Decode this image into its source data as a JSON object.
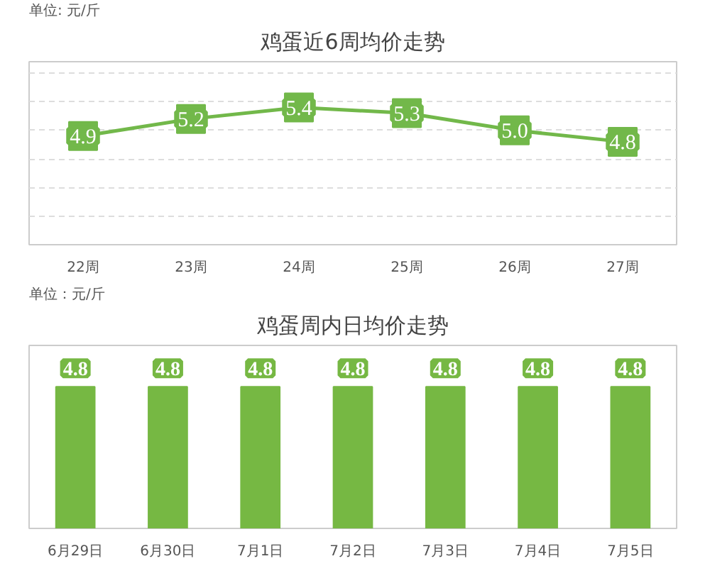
{
  "chart_data": [
    {
      "type": "line",
      "title": "鸡蛋近6周均价走势",
      "annotations": [
        "单位: 元/斤"
      ],
      "categories": [
        "22周",
        "23周",
        "24周",
        "25周",
        "26周",
        "27周"
      ],
      "series": [
        {
          "color": "#72b84a",
          "values": [
            4.9,
            5.2,
            5.4,
            5.3,
            5.0,
            4.8
          ],
          "value_labels": [
            "4.9",
            "5.2",
            "5.4",
            "5.3",
            "5.0",
            "4.8"
          ]
        }
      ],
      "ylim": [
        3,
        6.2
      ],
      "yticks": [
        {
          "value": 3,
          "label": null
        },
        {
          "value": 3.5,
          "label": null
        },
        {
          "value": 4,
          "label": null
        },
        {
          "value": 4.5,
          "label": null
        },
        {
          "value": 5,
          "label": null
        },
        {
          "value": 5.5,
          "label": null
        },
        {
          "value": 6,
          "label": null
        }
      ],
      "grid": "y",
      "tick_labels": "x",
      "line_style": "solid",
      "marker": "square"
    },
    {
      "type": "bar",
      "title": "鸡蛋周内日均价走势",
      "annotations": [
        "单位：元/斤"
      ],
      "categories": [
        "6月29日",
        "6月30日",
        "7月1日",
        "7月2日",
        "7月3日",
        "7月4日",
        "7月5日"
      ],
      "series": [
        {
          "color": "#76b843",
          "values": [
            4.8,
            4.8,
            4.8,
            4.8,
            4.8,
            4.8,
            4.8
          ]
        }
      ],
      "ylim": [
        0,
        6.2
      ],
      "tick_labels": "x",
      "data_labels": true
    }
  ]
}
